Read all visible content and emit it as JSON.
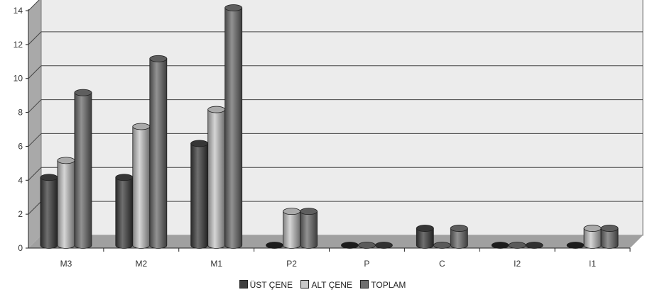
{
  "chart_data": {
    "type": "bar",
    "title": "",
    "xlabel": "",
    "ylabel": "",
    "categories": [
      "M3",
      "M2",
      "M1",
      "P2",
      "P",
      "C",
      "I2",
      "I1"
    ],
    "series": [
      {
        "name": "ÜST ÇENE",
        "values": [
          4,
          4,
          6,
          0,
          0,
          1,
          0,
          0
        ],
        "color": "#3f3f3f"
      },
      {
        "name": "ALT ÇENE",
        "values": [
          5,
          7,
          8,
          2,
          0,
          0,
          0,
          1
        ],
        "color": "#c8c8c8"
      },
      {
        "name": "TOPLAM",
        "values": [
          9,
          11,
          14,
          2,
          0,
          1,
          0,
          1
        ],
        "color": "#6e6e6e"
      }
    ],
    "ylim": [
      0,
      14
    ],
    "yticks": [
      0,
      2,
      4,
      6,
      8,
      10,
      12,
      14
    ],
    "grid": true,
    "legend_position": "bottom"
  }
}
